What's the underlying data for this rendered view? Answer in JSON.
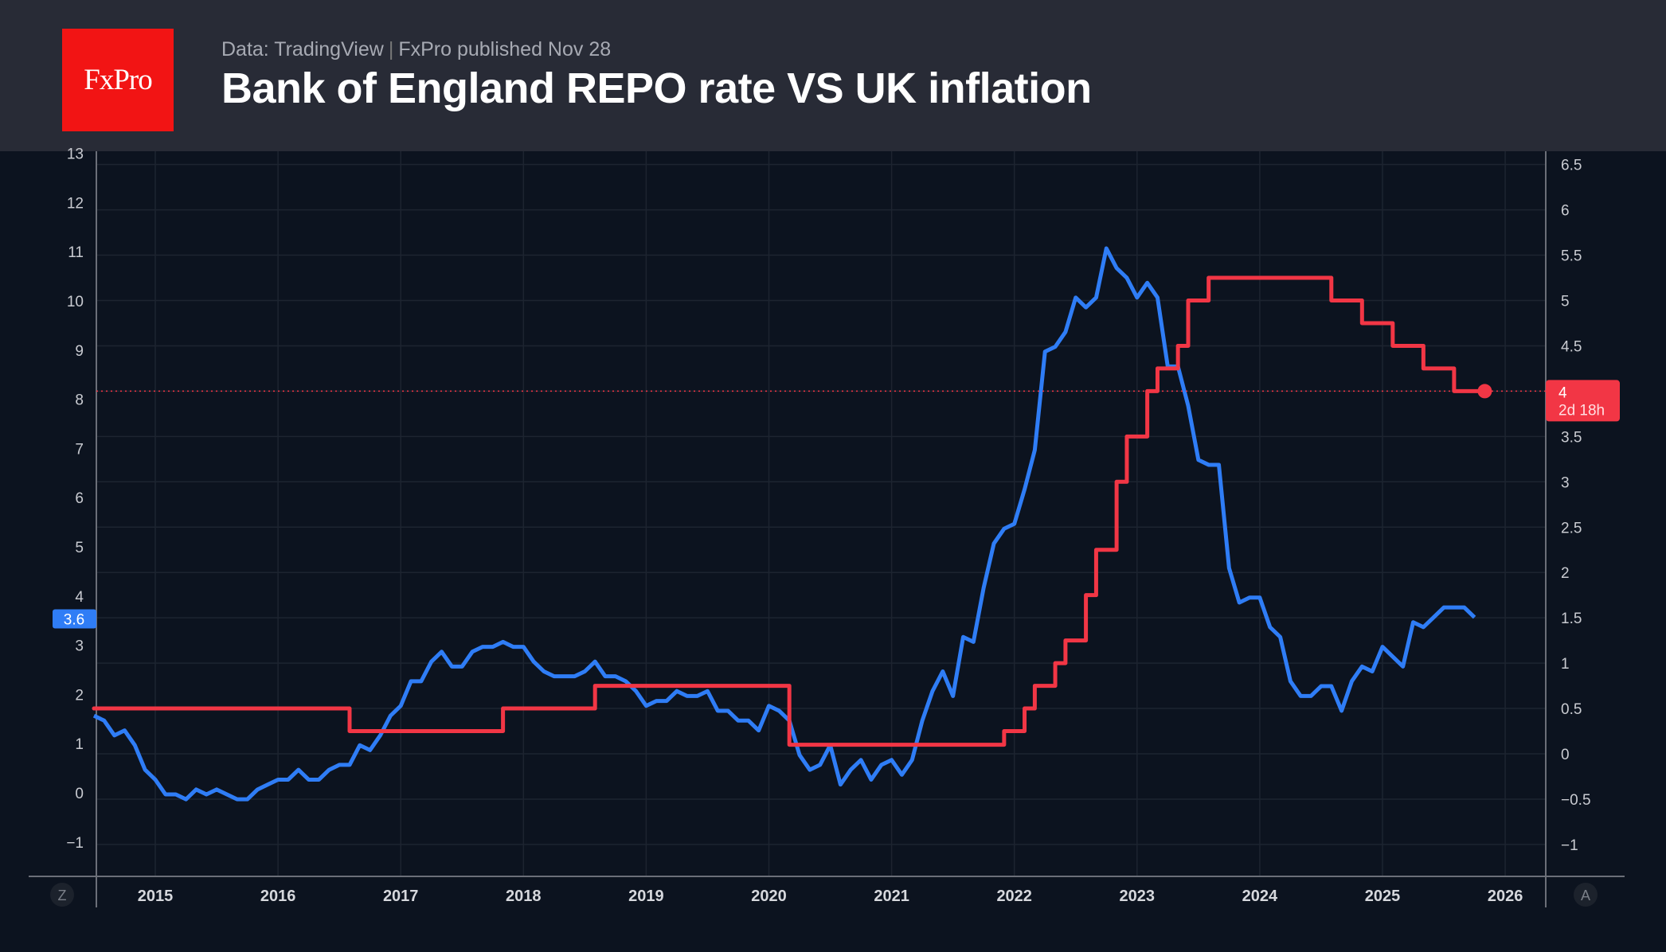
{
  "header": {
    "logo_text": "FxPro",
    "source": "Data: TradingView",
    "published": "FxPro published Nov 28",
    "title": "Bank of England REPO rate VS UK inflation"
  },
  "colors": {
    "inflation": "#2f7df6",
    "repo_rate": "#f23645",
    "background": "#0c131f",
    "header": "#282b36",
    "logo": "#f21414"
  },
  "chart_data": {
    "type": "line",
    "title": "Bank of England REPO rate VS UK inflation",
    "grid": true,
    "x_ticks": [
      "2015",
      "2016",
      "2017",
      "2018",
      "2019",
      "2020",
      "2021",
      "2022",
      "2023",
      "2024",
      "2025",
      "2026"
    ],
    "left_axis": {
      "ylim": [
        -1.6,
        13.1
      ],
      "ticks": [
        "-1",
        "0",
        "1",
        "2",
        "3",
        "4",
        "5",
        "6",
        "7",
        "8",
        "9",
        "10",
        "11",
        "12",
        "13"
      ]
    },
    "right_axis": {
      "ylim": [
        -1.25,
        6.6
      ],
      "ticks": [
        "-1",
        "-0.5",
        "0",
        "0.5",
        "1",
        "1.5",
        "2",
        "2.5",
        "3",
        "3.5",
        "4",
        "4.5",
        "5",
        "5.5",
        "6",
        "6.5"
      ]
    },
    "series": [
      {
        "key": "inflation",
        "axis": "left",
        "style": "line",
        "start": "2014-07",
        "last_value_label": "3.6",
        "values": [
          1.6,
          1.5,
          1.2,
          1.3,
          1.0,
          0.5,
          0.3,
          0.0,
          0.0,
          -0.1,
          0.1,
          0.0,
          0.1,
          0.0,
          -0.1,
          -0.1,
          0.1,
          0.2,
          0.3,
          0.3,
          0.5,
          0.3,
          0.3,
          0.5,
          0.6,
          0.6,
          1.0,
          0.9,
          1.2,
          1.6,
          1.8,
          2.3,
          2.3,
          2.7,
          2.9,
          2.6,
          2.6,
          2.9,
          3.0,
          3.0,
          3.1,
          3.0,
          3.0,
          2.7,
          2.5,
          2.4,
          2.4,
          2.4,
          2.5,
          2.7,
          2.4,
          2.4,
          2.3,
          2.1,
          1.8,
          1.9,
          1.9,
          2.1,
          2.0,
          2.0,
          2.1,
          1.7,
          1.7,
          1.5,
          1.5,
          1.3,
          1.8,
          1.7,
          1.5,
          0.8,
          0.5,
          0.6,
          1.0,
          0.2,
          0.5,
          0.7,
          0.3,
          0.6,
          0.7,
          0.4,
          0.7,
          1.5,
          2.1,
          2.5,
          2.0,
          3.2,
          3.1,
          4.2,
          5.1,
          5.4,
          5.5,
          6.2,
          7.0,
          9.0,
          9.1,
          9.4,
          10.1,
          9.9,
          10.1,
          11.1,
          10.7,
          10.5,
          10.1,
          10.4,
          10.1,
          8.7,
          8.7,
          7.9,
          6.8,
          6.7,
          6.7,
          4.6,
          3.9,
          4.0,
          4.0,
          3.4,
          3.2,
          2.3,
          2.0,
          2.0,
          2.2,
          2.2,
          1.7,
          2.3,
          2.6,
          2.5,
          3.0,
          2.8,
          2.6,
          3.5,
          3.4,
          3.6,
          3.8,
          3.8,
          3.8,
          3.6
        ]
      },
      {
        "key": "repo_rate",
        "axis": "right",
        "style": "step",
        "start": "2014-07",
        "last_value_label": "4",
        "countdown_label": "2d 18h",
        "values": [
          0.5,
          0.5,
          0.5,
          0.5,
          0.5,
          0.5,
          0.5,
          0.5,
          0.5,
          0.5,
          0.5,
          0.5,
          0.5,
          0.5,
          0.5,
          0.5,
          0.5,
          0.5,
          0.5,
          0.5,
          0.5,
          0.5,
          0.5,
          0.5,
          0.5,
          0.25,
          0.25,
          0.25,
          0.25,
          0.25,
          0.25,
          0.25,
          0.25,
          0.25,
          0.25,
          0.25,
          0.25,
          0.25,
          0.25,
          0.25,
          0.5,
          0.5,
          0.5,
          0.5,
          0.5,
          0.5,
          0.5,
          0.5,
          0.5,
          0.75,
          0.75,
          0.75,
          0.75,
          0.75,
          0.75,
          0.75,
          0.75,
          0.75,
          0.75,
          0.75,
          0.75,
          0.75,
          0.75,
          0.75,
          0.75,
          0.75,
          0.75,
          0.75,
          0.1,
          0.1,
          0.1,
          0.1,
          0.1,
          0.1,
          0.1,
          0.1,
          0.1,
          0.1,
          0.1,
          0.1,
          0.1,
          0.1,
          0.1,
          0.1,
          0.1,
          0.1,
          0.1,
          0.1,
          0.1,
          0.25,
          0.25,
          0.5,
          0.75,
          0.75,
          1.0,
          1.25,
          1.25,
          1.75,
          2.25,
          2.25,
          3.0,
          3.5,
          3.5,
          4.0,
          4.25,
          4.25,
          4.5,
          5.0,
          5.0,
          5.25,
          5.25,
          5.25,
          5.25,
          5.25,
          5.25,
          5.25,
          5.25,
          5.25,
          5.25,
          5.25,
          5.25,
          5.0,
          5.0,
          5.0,
          4.75,
          4.75,
          4.75,
          4.5,
          4.5,
          4.5,
          4.25,
          4.25,
          4.25,
          4.0,
          4.0,
          4.0,
          4.0
        ]
      }
    ]
  },
  "corner_buttons": {
    "left": "Z",
    "right": "A"
  }
}
